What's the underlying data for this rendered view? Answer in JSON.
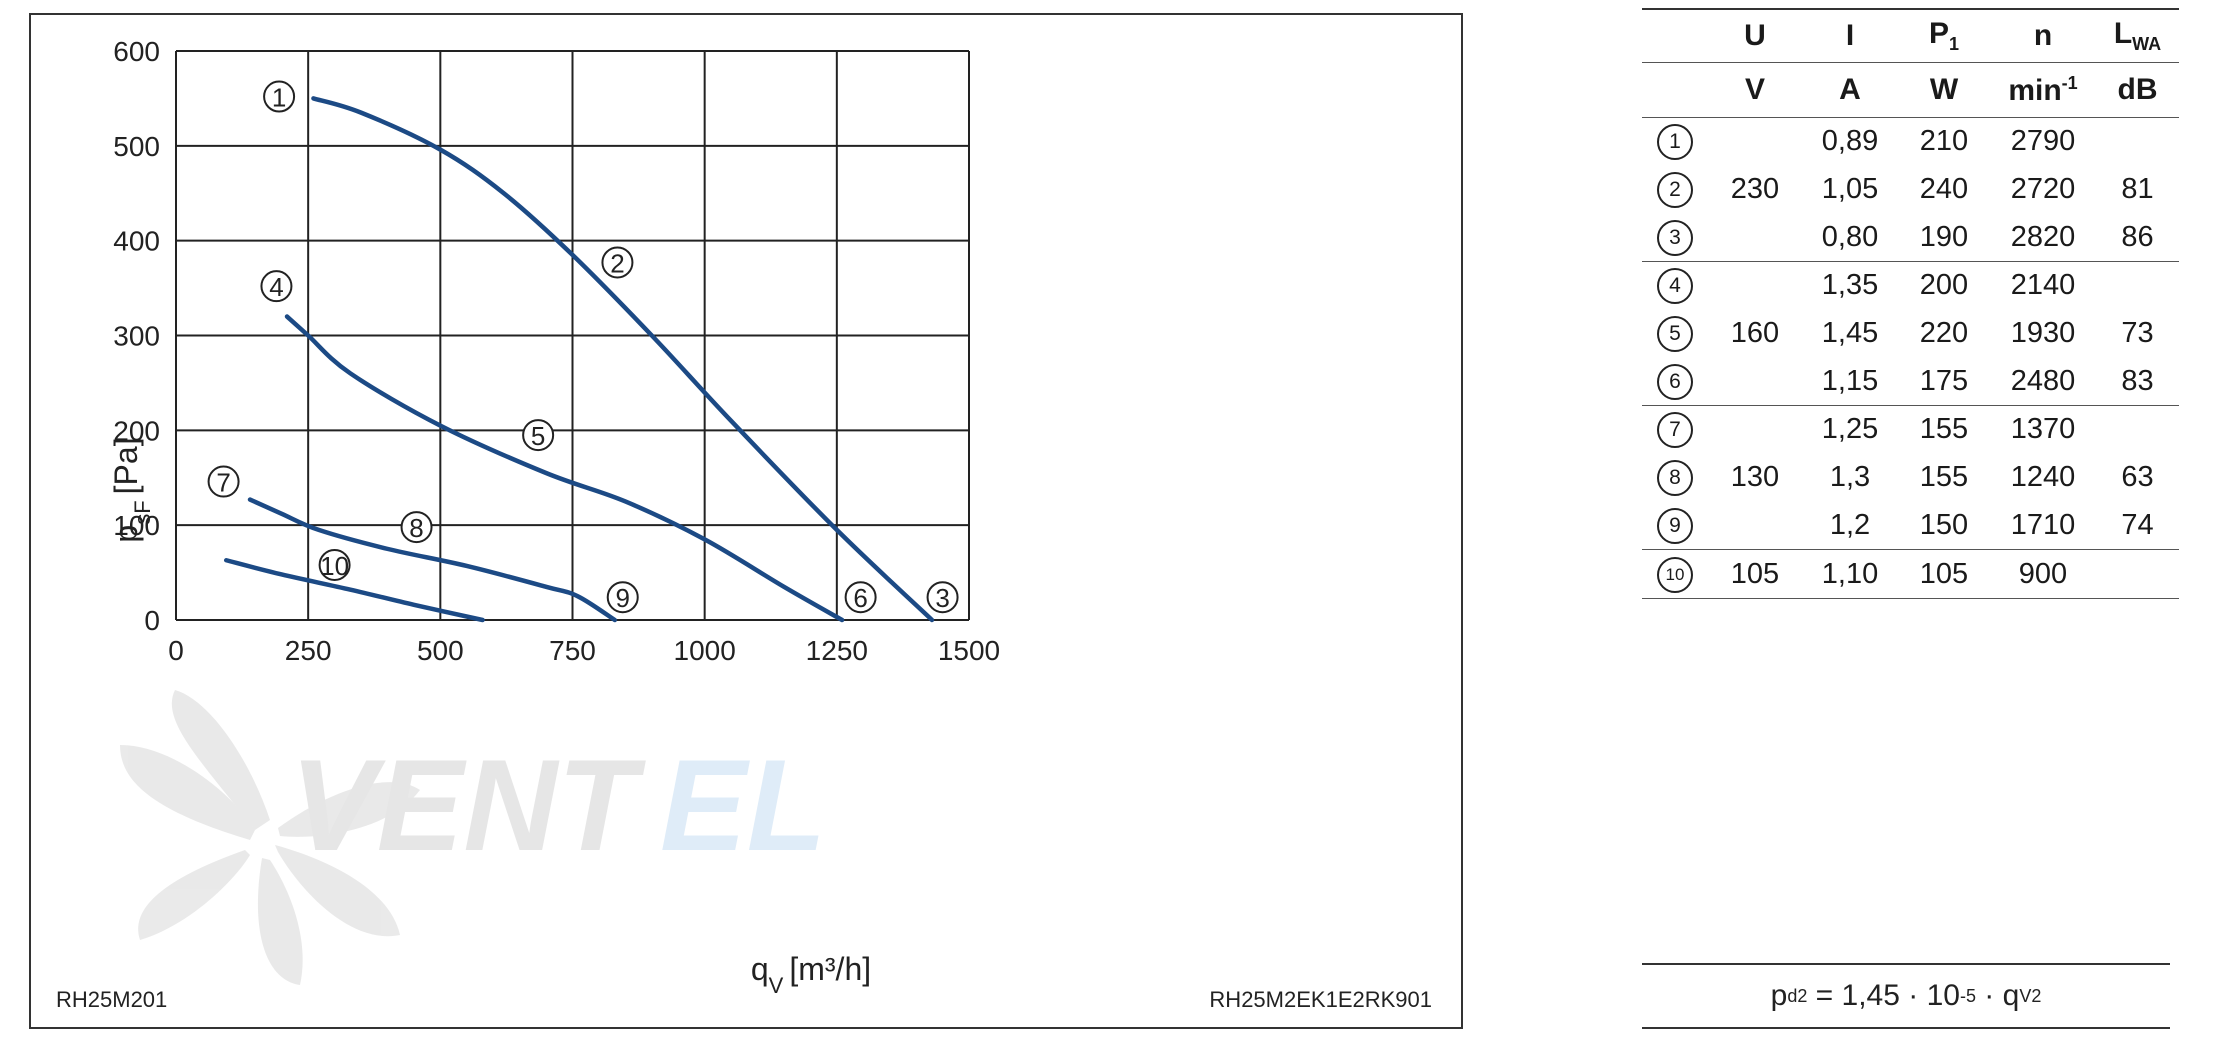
{
  "chart_data": {
    "type": "line",
    "title": "",
    "xlabel": "q",
    "xlabel_sub": "V",
    "xlabel_unit": "[m³/h]",
    "ylabel": "p",
    "ylabel_sub": "sF",
    "ylabel_unit": "[Pa]",
    "xlim": [
      0,
      1500
    ],
    "ylim": [
      0,
      600
    ],
    "xticks": [
      0,
      250,
      500,
      750,
      1000,
      1250,
      1500
    ],
    "yticks": [
      0,
      100,
      200,
      300,
      400,
      500,
      600
    ],
    "grid": true,
    "series": [
      {
        "name": "2",
        "x": [
          260,
          350,
          500,
          620,
          750,
          900,
          1050,
          1250,
          1430
        ],
        "y": [
          550,
          535,
          496,
          450,
          385,
          300,
          210,
          95,
          0
        ]
      },
      {
        "name": "5",
        "x": [
          210,
          250,
          330,
          500,
          700,
          850,
          1000,
          1150,
          1260
        ],
        "y": [
          320,
          300,
          260,
          205,
          155,
          125,
          85,
          35,
          0
        ]
      },
      {
        "name": "8",
        "x": [
          140,
          200,
          270,
          400,
          550,
          700,
          760,
          830
        ],
        "y": [
          127,
          112,
          95,
          75,
          57,
          35,
          25,
          0
        ]
      },
      {
        "name": "10",
        "x": [
          95,
          200,
          330,
          450,
          580
        ],
        "y": [
          63,
          48,
          32,
          16,
          0
        ]
      }
    ],
    "markers": [
      {
        "label": "1",
        "x": 195,
        "y": 552
      },
      {
        "label": "2",
        "x": 835,
        "y": 377
      },
      {
        "label": "3",
        "x": 1450,
        "y": 24
      },
      {
        "label": "4",
        "x": 190,
        "y": 352
      },
      {
        "label": "5",
        "x": 685,
        "y": 195
      },
      {
        "label": "6",
        "x": 1295,
        "y": 24
      },
      {
        "label": "7",
        "x": 90,
        "y": 146
      },
      {
        "label": "8",
        "x": 455,
        "y": 98
      },
      {
        "label": "9",
        "x": 845,
        "y": 24
      },
      {
        "label": "10",
        "x": 300,
        "y": 58
      }
    ],
    "footer_left": "RH25M201",
    "footer_right": "RH25M2EK1E2RK901"
  },
  "table": {
    "headers": [
      {
        "main": "U",
        "sub": ""
      },
      {
        "main": "I",
        "sub": ""
      },
      {
        "main": "P",
        "sub": "1"
      },
      {
        "main": "n",
        "sub": ""
      },
      {
        "main": "L",
        "sub": "WA"
      }
    ],
    "units": [
      "V",
      "A",
      "W",
      "min",
      "dB"
    ],
    "unit_min_sup": "-1",
    "rows": [
      {
        "id": "1",
        "u": "",
        "i": "0,89",
        "p": "210",
        "n": "2790",
        "l": ""
      },
      {
        "id": "2",
        "u": "230",
        "i": "1,05",
        "p": "240",
        "n": "2720",
        "l": "81"
      },
      {
        "id": "3",
        "u": "",
        "i": "0,80",
        "p": "190",
        "n": "2820",
        "l": "86"
      },
      {
        "id": "4",
        "u": "",
        "i": "1,35",
        "p": "200",
        "n": "2140",
        "l": ""
      },
      {
        "id": "5",
        "u": "160",
        "i": "1,45",
        "p": "220",
        "n": "1930",
        "l": "73"
      },
      {
        "id": "6",
        "u": "",
        "i": "1,15",
        "p": "175",
        "n": "2480",
        "l": "83"
      },
      {
        "id": "7",
        "u": "",
        "i": "1,25",
        "p": "155",
        "n": "1370",
        "l": ""
      },
      {
        "id": "8",
        "u": "130",
        "i": "1,3",
        "p": "155",
        "n": "1240",
        "l": "63"
      },
      {
        "id": "9",
        "u": "",
        "i": "1,2",
        "p": "150",
        "n": "1710",
        "l": "74"
      },
      {
        "id": "10",
        "u": "105",
        "i": "1,10",
        "p": "105",
        "n": "900",
        "l": ""
      }
    ]
  },
  "formula": {
    "p": "p",
    "p_sub": "d2",
    "eq": " = 1,45 · 10",
    "exp": "-5",
    "dot": " · q",
    "q_sub": "V",
    "q_sup": "2"
  },
  "watermark_text": "VENTEL"
}
